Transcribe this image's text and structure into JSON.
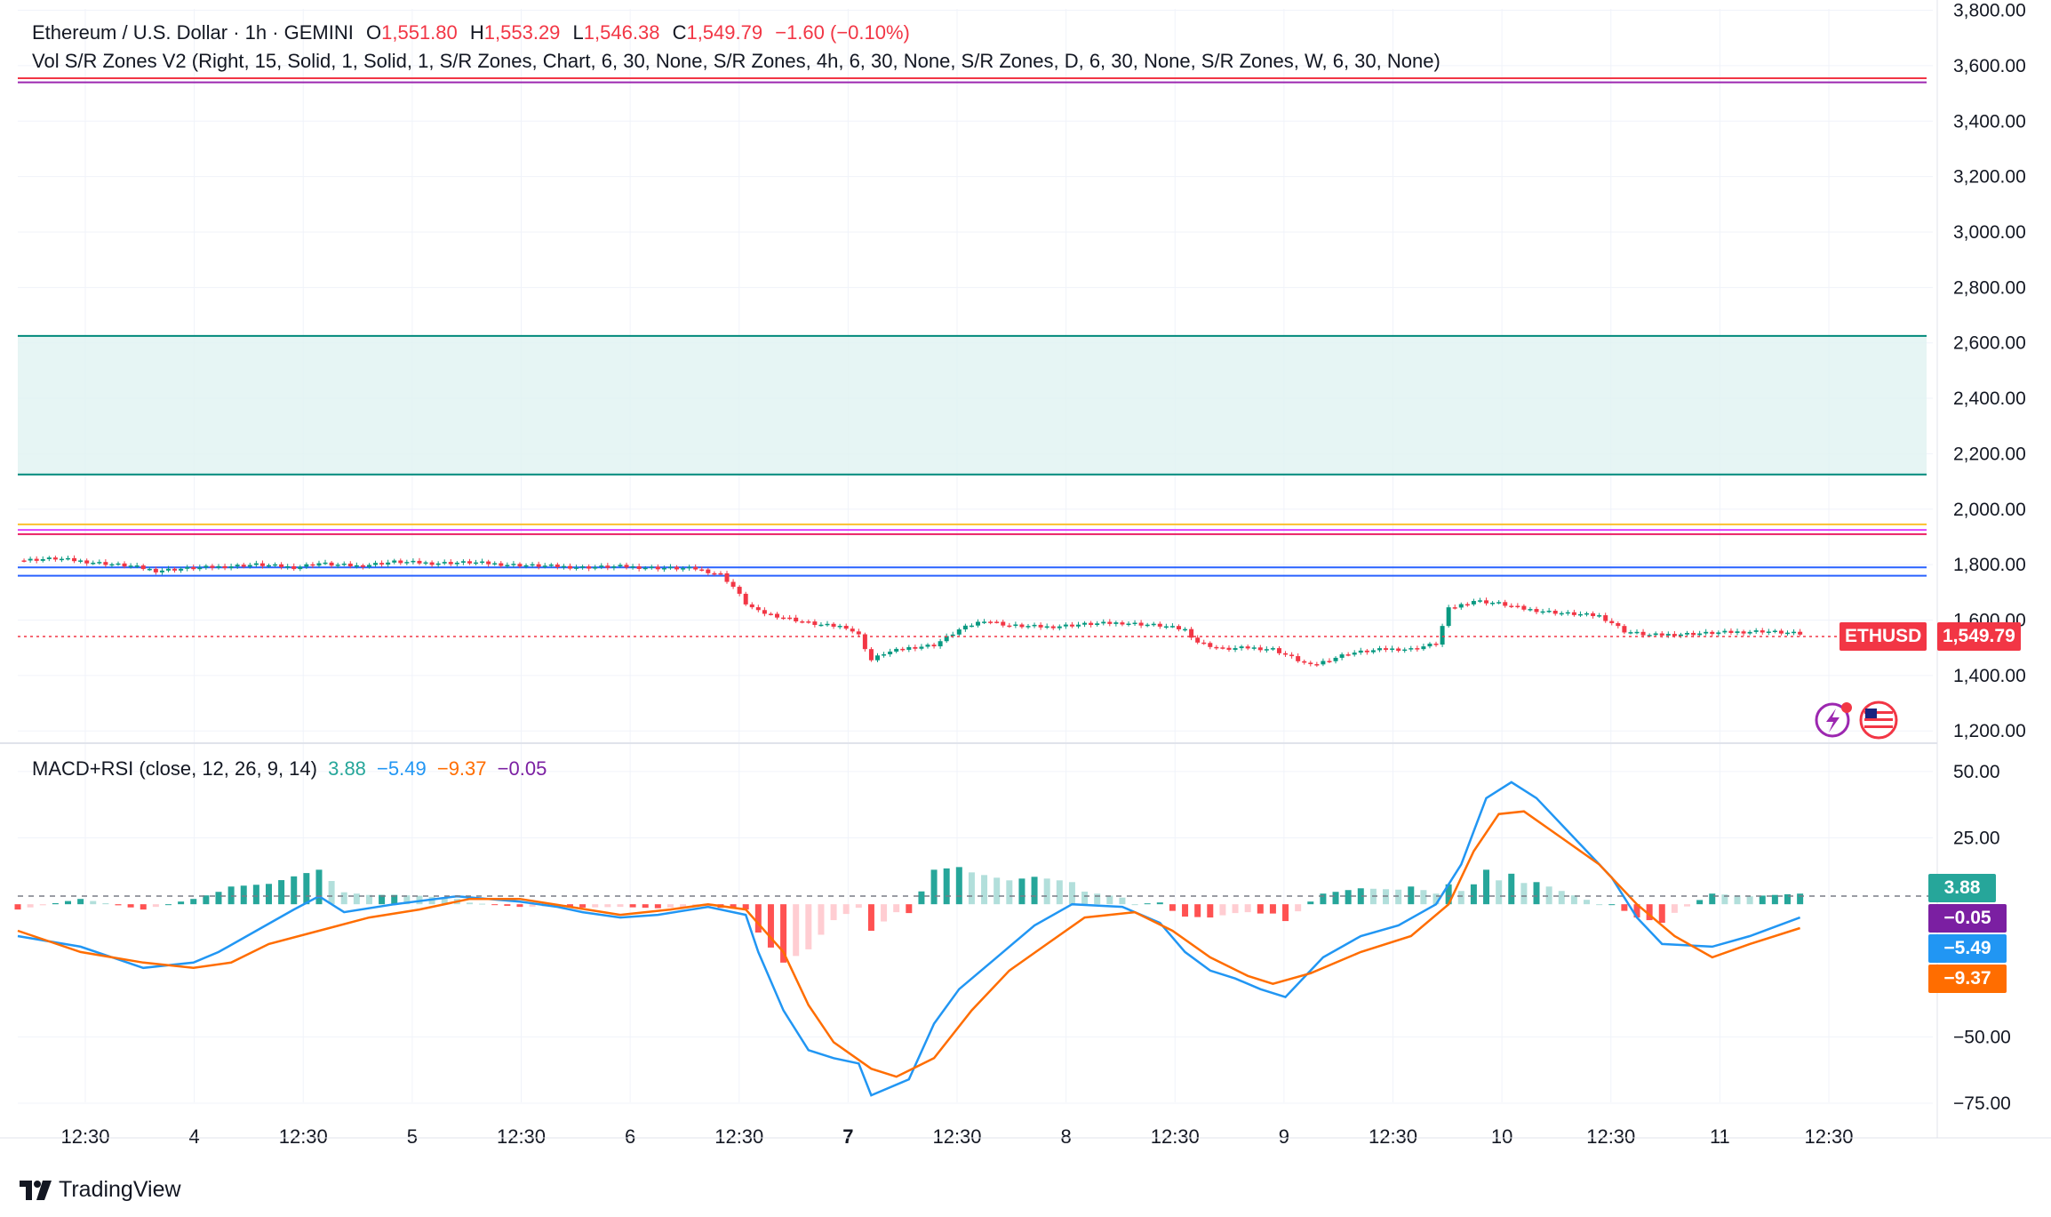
{
  "header": {
    "symbol": "Ethereum / U.S. Dollar · 1h · GEMINI",
    "o_label": "O",
    "o_value": "1,551.80",
    "h_label": "H",
    "h_value": "1,553.29",
    "l_label": "L",
    "l_value": "1,546.38",
    "c_label": "C",
    "c_value": "1,549.79",
    "change": "−1.60 (−0.10%)",
    "indicator": "Vol S/R Zones V2 (Right, 15, Solid, 1, Solid, 1, S/R Zones, Chart, 6, 30, None, S/R Zones, 4h, 6, 30, None, S/R Zones, D, 6, 30, None, S/R Zones, W, 6, 30, None)"
  },
  "macd_legend": {
    "title": "MACD+RSI (close, 12, 26, 9, 14)",
    "v1": "3.88",
    "v2": "−5.49",
    "v3": "−9.37",
    "v4": "−0.05"
  },
  "price_badges": {
    "ticker": "ETHUSD",
    "price": "1,549.79"
  },
  "macd_badges": {
    "hist": "3.88",
    "rsi": "−0.05",
    "macd": "−5.49",
    "signal": "−9.37"
  },
  "brand": {
    "name": "TradingView"
  },
  "colors": {
    "up": "#089981",
    "down": "#f23645",
    "hist_up_strong": "#26a69a",
    "hist_up_weak": "#b2dfdb",
    "hist_down_strong": "#ff5252",
    "hist_down_weak": "#ffcdd2",
    "macd": "#2196f3",
    "signal": "#ff6d00",
    "rsi_badge": "#7b1fa2",
    "zone_fill": "#e0f2f1",
    "zone_line": "#00897b"
  },
  "chart_data": [
    {
      "type": "candlestick",
      "title": "Ethereum / U.S. Dollar · 1h · GEMINI",
      "y_axis_ticks": [
        "1,200.00",
        "1,400.00",
        "1,600.00",
        "1,800.00",
        "2,000.00",
        "2,200.00",
        "2,400.00",
        "2,600.00",
        "2,800.00",
        "3,000.00",
        "3,200.00",
        "3,400.00",
        "3,600.00",
        "3,800.00"
      ],
      "ylim": [
        1175,
        3805
      ],
      "x_axis_ticks": [
        "12:30",
        "4",
        "12:30",
        "5",
        "12:30",
        "6",
        "12:30",
        "7",
        "12:30",
        "8",
        "12:30",
        "9",
        "12:30",
        "10",
        "12:30",
        "11",
        "12:30"
      ],
      "last_price": 1549.79,
      "close_path": [
        [
          0,
          1815
        ],
        [
          6,
          1822
        ],
        [
          12,
          1808
        ],
        [
          18,
          1795
        ],
        [
          22,
          1778
        ],
        [
          26,
          1785
        ],
        [
          32,
          1792
        ],
        [
          38,
          1800
        ],
        [
          44,
          1790
        ],
        [
          48,
          1805
        ],
        [
          50,
          1800
        ],
        [
          54,
          1795
        ],
        [
          60,
          1810
        ],
        [
          66,
          1805
        ],
        [
          72,
          1808
        ],
        [
          78,
          1800
        ],
        [
          84,
          1795
        ],
        [
          90,
          1790
        ],
        [
          96,
          1793
        ],
        [
          102,
          1788
        ],
        [
          108,
          1785
        ],
        [
          112,
          1765
        ],
        [
          114,
          1720
        ],
        [
          116,
          1660
        ],
        [
          118,
          1630
        ],
        [
          122,
          1610
        ],
        [
          126,
          1590
        ],
        [
          128,
          1582
        ],
        [
          132,
          1575
        ],
        [
          134,
          1545
        ],
        [
          136,
          1455
        ],
        [
          138,
          1480
        ],
        [
          142,
          1500
        ],
        [
          146,
          1510
        ],
        [
          150,
          1565
        ],
        [
          154,
          1600
        ],
        [
          158,
          1580
        ],
        [
          164,
          1575
        ],
        [
          170,
          1585
        ],
        [
          176,
          1590
        ],
        [
          182,
          1580
        ],
        [
          186,
          1565
        ],
        [
          188,
          1520
        ],
        [
          192,
          1495
        ],
        [
          196,
          1500
        ],
        [
          200,
          1495
        ],
        [
          202,
          1475
        ],
        [
          206,
          1435
        ],
        [
          212,
          1480
        ],
        [
          218,
          1495
        ],
        [
          222,
          1495
        ],
        [
          226,
          1515
        ],
        [
          228,
          1640
        ],
        [
          232,
          1670
        ],
        [
          236,
          1660
        ],
        [
          240,
          1640
        ],
        [
          246,
          1625
        ],
        [
          252,
          1615
        ],
        [
          254,
          1590
        ],
        [
          256,
          1560
        ],
        [
          260,
          1545
        ],
        [
          266,
          1550
        ],
        [
          272,
          1555
        ],
        [
          278,
          1560
        ],
        [
          284,
          1550
        ]
      ],
      "sr_lines": [
        {
          "price": 3555,
          "from": 0,
          "to": 1,
          "color": "#f23645"
        },
        {
          "price": 3540,
          "from": 0,
          "to": 1,
          "color": "#9c27b0"
        },
        {
          "price": 2625,
          "from": 0,
          "to": 1,
          "color": "#00897b"
        },
        {
          "price": 2125,
          "from": 0,
          "to": 1,
          "color": "#00897b"
        },
        {
          "price": 1945,
          "from": 0,
          "to": 1,
          "color": "#fbc02d"
        },
        {
          "price": 1925,
          "from": 0,
          "to": 1,
          "color": "#e040fb"
        },
        {
          "price": 1910,
          "from": 0,
          "to": 1,
          "color": "#e91e63"
        },
        {
          "price": 1790,
          "from": 0,
          "to": 1,
          "color": "#2962ff"
        },
        {
          "price": 1760,
          "from": 0,
          "to": 1,
          "color": "#2962ff"
        }
      ],
      "zone": {
        "from_price": 2125,
        "to_price": 2625
      }
    },
    {
      "type": "macd",
      "title": "MACD+RSI (close, 12, 26, 9, 14)",
      "y_axis_ticks": [
        "−75.00",
        "−50.00",
        "25.00",
        "50.00"
      ],
      "ylim": [
        -78,
        56
      ],
      "series": [
        {
          "name": "MACD",
          "points": [
            [
              0,
              -12
            ],
            [
              10,
              -16
            ],
            [
              20,
              -24
            ],
            [
              28,
              -22
            ],
            [
              32,
              -18
            ],
            [
              38,
              -10
            ],
            [
              44,
              -2
            ],
            [
              48,
              3
            ],
            [
              52,
              -3
            ],
            [
              60,
              0
            ],
            [
              70,
              3
            ],
            [
              80,
              1
            ],
            [
              86,
              -1
            ],
            [
              90,
              -3
            ],
            [
              96,
              -5
            ],
            [
              102,
              -4
            ],
            [
              110,
              -1
            ],
            [
              116,
              -4
            ],
            [
              118,
              -18
            ],
            [
              122,
              -40
            ],
            [
              126,
              -55
            ],
            [
              130,
              -58
            ],
            [
              134,
              -60
            ],
            [
              136,
              -72
            ],
            [
              142,
              -66
            ],
            [
              146,
              -45
            ],
            [
              150,
              -32
            ],
            [
              156,
              -20
            ],
            [
              162,
              -8
            ],
            [
              168,
              0
            ],
            [
              176,
              -1
            ],
            [
              182,
              -7
            ],
            [
              186,
              -18
            ],
            [
              190,
              -25
            ],
            [
              194,
              -28
            ],
            [
              198,
              -32
            ],
            [
              202,
              -35
            ],
            [
              208,
              -20
            ],
            [
              214,
              -12
            ],
            [
              220,
              -8
            ],
            [
              226,
              0
            ],
            [
              230,
              15
            ],
            [
              234,
              40
            ],
            [
              238,
              46
            ],
            [
              242,
              40
            ],
            [
              248,
              25
            ],
            [
              254,
              10
            ],
            [
              258,
              -5
            ],
            [
              262,
              -15
            ],
            [
              270,
              -16
            ],
            [
              276,
              -12
            ],
            [
              284,
              -5
            ]
          ]
        },
        {
          "name": "Signal",
          "points": [
            [
              0,
              -10
            ],
            [
              10,
              -18
            ],
            [
              20,
              -22
            ],
            [
              28,
              -24
            ],
            [
              34,
              -22
            ],
            [
              40,
              -15
            ],
            [
              48,
              -10
            ],
            [
              56,
              -5
            ],
            [
              64,
              -2
            ],
            [
              72,
              2
            ],
            [
              80,
              2
            ],
            [
              88,
              -1
            ],
            [
              96,
              -4
            ],
            [
              104,
              -2
            ],
            [
              110,
              0
            ],
            [
              116,
              -2
            ],
            [
              122,
              -18
            ],
            [
              126,
              -38
            ],
            [
              130,
              -52
            ],
            [
              136,
              -62
            ],
            [
              140,
              -65
            ],
            [
              146,
              -58
            ],
            [
              152,
              -40
            ],
            [
              158,
              -25
            ],
            [
              164,
              -15
            ],
            [
              170,
              -5
            ],
            [
              178,
              -3
            ],
            [
              184,
              -10
            ],
            [
              190,
              -20
            ],
            [
              196,
              -27
            ],
            [
              200,
              -30
            ],
            [
              206,
              -26
            ],
            [
              214,
              -18
            ],
            [
              222,
              -12
            ],
            [
              228,
              0
            ],
            [
              232,
              20
            ],
            [
              236,
              34
            ],
            [
              240,
              35
            ],
            [
              246,
              25
            ],
            [
              252,
              15
            ],
            [
              258,
              0
            ],
            [
              264,
              -12
            ],
            [
              270,
              -20
            ],
            [
              276,
              -15
            ],
            [
              284,
              -9
            ]
          ]
        }
      ],
      "hist_summary": "positive bars near 4, 12:30 (Mar 4), Mar 8 and Mar 10; negative bars near Mar 7 and Mar 9/11"
    }
  ]
}
